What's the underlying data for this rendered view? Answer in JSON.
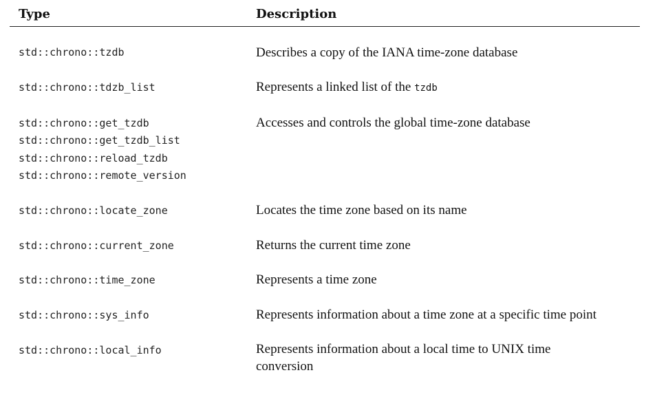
{
  "table": {
    "headers": {
      "type": "Type",
      "description": "Description"
    },
    "rows": [
      {
        "types": [
          "std::chrono::tzdb"
        ],
        "description": "Describes a copy of the IANA time-zone database"
      },
      {
        "types": [
          "std::chrono::tdzb_list"
        ],
        "description": "Represents a linked list of the",
        "description_code": "tzdb"
      },
      {
        "types": [
          "std::chrono::get_tzdb",
          "std::chrono::get_tzdb_list",
          "std::chrono::reload_tzdb",
          "std::chrono::remote_version"
        ],
        "description": "Accesses and controls the global time-zone database"
      },
      {
        "types": [
          "std::chrono::locate_zone"
        ],
        "description": "Locates the time zone based on its name"
      },
      {
        "types": [
          "std::chrono::current_zone"
        ],
        "description": "Returns the current time zone"
      },
      {
        "types": [
          "std::chrono::time_zone"
        ],
        "description": "Represents a time zone"
      },
      {
        "types": [
          "std::chrono::sys_info"
        ],
        "description": "Represents information about a time zone at a specific time point"
      },
      {
        "types": [
          "std::chrono::local_info"
        ],
        "description_lines": [
          "Represents information about a local time to UNIX time",
          "conversion"
        ]
      }
    ]
  }
}
